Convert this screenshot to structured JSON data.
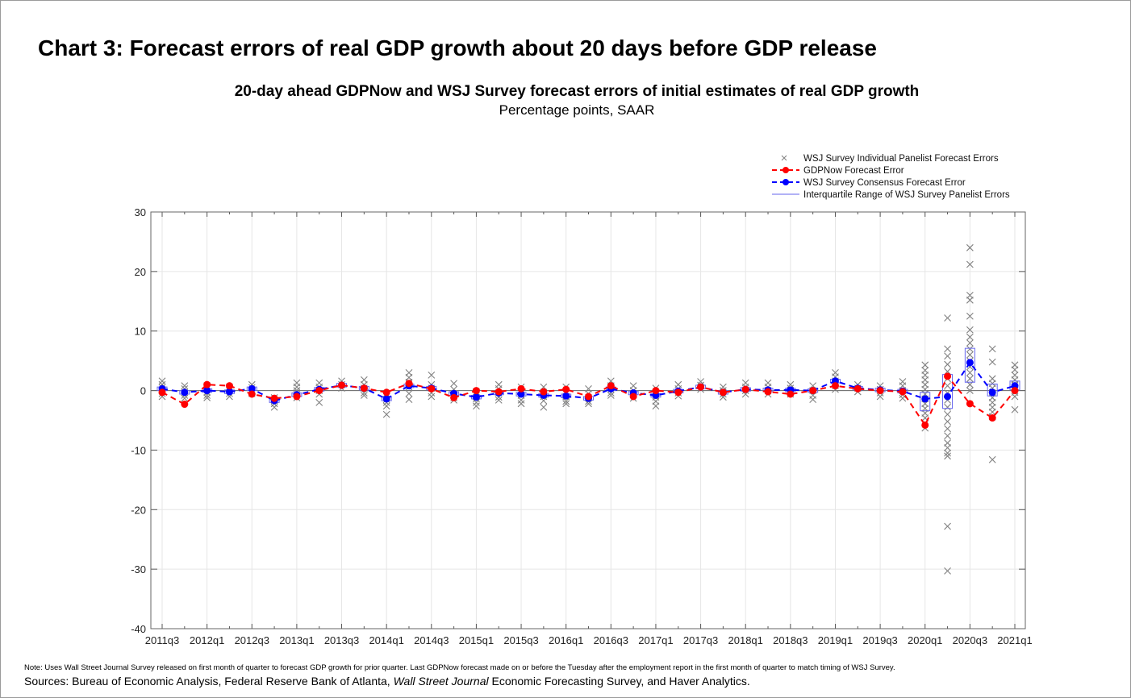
{
  "title": "Chart 3:  Forecast errors of real GDP growth about 20 days before GDP release",
  "note": "Note:  Uses Wall Street Journal Survey released on first month of quarter to forecast GDP growth for prior quarter.  Last GDPNow forecast made on or before the Tuesday after the employment report in the first month of quarter to match timing of WSJ Survey.",
  "sources": {
    "prefix": "Sources: Bureau of Economic Analysis, Federal Reserve Bank of Atlanta, ",
    "italic": "Wall Street Journal",
    "suffix": " Economic Forecasting Survey, and Haver Analytics."
  },
  "chart_data": {
    "type": "line",
    "title": "20-day ahead GDPNow and WSJ Survey forecast errors of initial estimates of real GDP growth",
    "subtitle": "Percentage points, SAAR",
    "ylim": [
      -40,
      30
    ],
    "yticks": [
      -40,
      -30,
      -20,
      -10,
      0,
      10,
      20,
      30
    ],
    "grid": true,
    "legend_placement": "top-right",
    "x": [
      "2011q3",
      "2011q4",
      "2012q1",
      "2012q2",
      "2012q3",
      "2012q4",
      "2013q1",
      "2013q2",
      "2013q3",
      "2013q4",
      "2014q1",
      "2014q2",
      "2014q3",
      "2014q4",
      "2015q1",
      "2015q2",
      "2015q3",
      "2015q4",
      "2016q1",
      "2016q2",
      "2016q3",
      "2016q4",
      "2017q1",
      "2017q2",
      "2017q3",
      "2017q4",
      "2018q1",
      "2018q2",
      "2018q3",
      "2018q4",
      "2019q1",
      "2019q2",
      "2019q3",
      "2019q4",
      "2020q1",
      "2020q2",
      "2020q3",
      "2020q4",
      "2021q1"
    ],
    "xtick_labels": [
      "2011q3",
      "2012q1",
      "2012q3",
      "2013q1",
      "2013q3",
      "2014q1",
      "2014q3",
      "2015q1",
      "2015q3",
      "2016q1",
      "2016q3",
      "2017q1",
      "2017q3",
      "2018q1",
      "2018q3",
      "2019q1",
      "2019q3",
      "2020q1",
      "2020q3",
      "2021q1"
    ],
    "series": [
      {
        "name": "GDPNow Forecast Error",
        "color": "#ff0000",
        "values": [
          -0.3,
          -2.3,
          1.0,
          0.8,
          -0.6,
          -1.3,
          -1.0,
          0.0,
          0.9,
          0.4,
          -0.3,
          1.2,
          0.3,
          -1.2,
          0.0,
          -0.2,
          0.3,
          -0.2,
          0.2,
          -1.0,
          0.8,
          -1.0,
          0.0,
          -0.3,
          0.6,
          -0.3,
          0.2,
          -0.2,
          -0.6,
          0.0,
          0.8,
          0.3,
          0.0,
          -0.2,
          -5.8,
          2.4,
          -2.2,
          -4.6,
          0.0
        ]
      },
      {
        "name": "WSJ Survey Consensus Forecast Error",
        "color": "#0000ff",
        "values": [
          0.3,
          -0.3,
          0.0,
          -0.2,
          0.3,
          -1.7,
          -0.7,
          0.2,
          0.9,
          0.4,
          -1.4,
          0.8,
          0.4,
          -0.5,
          -1.1,
          -0.4,
          -0.6,
          -0.8,
          -0.9,
          -1.3,
          0.3,
          -0.4,
          -0.8,
          -0.1,
          0.6,
          -0.3,
          0.2,
          0.1,
          0.1,
          0.0,
          1.6,
          0.4,
          0.1,
          -0.1,
          -1.4,
          -1.0,
          4.7,
          -0.3,
          0.8
        ]
      }
    ],
    "iqr": {
      "name": "Interquartile Range of WSJ Survey Panelist Errors",
      "color": "#6666ee",
      "low": [
        0.0,
        -0.6,
        -0.3,
        -0.5,
        0.0,
        -2.0,
        -1.0,
        -0.1,
        0.6,
        0.1,
        -1.7,
        0.5,
        0.1,
        -0.8,
        -1.4,
        -0.7,
        -0.9,
        -1.1,
        -1.2,
        -1.6,
        0.0,
        -0.7,
        -1.1,
        -0.4,
        0.3,
        -0.6,
        -0.1,
        -0.2,
        -0.2,
        -0.3,
        1.3,
        0.1,
        -0.2,
        -0.4,
        -3.4,
        -3.0,
        1.4,
        -0.9,
        0.1
      ],
      "high": [
        0.6,
        0.0,
        0.3,
        0.1,
        0.6,
        -1.4,
        -0.4,
        0.5,
        1.2,
        0.7,
        -1.1,
        1.1,
        0.7,
        -0.2,
        -0.8,
        -0.1,
        -0.3,
        -0.5,
        -0.6,
        -1.0,
        0.6,
        -0.1,
        -0.5,
        0.2,
        0.9,
        0.0,
        0.5,
        0.4,
        0.4,
        0.3,
        1.9,
        0.7,
        0.4,
        0.2,
        -0.3,
        2.7,
        7.1,
        1.1,
        1.6
      ]
    },
    "panelist": {
      "name": "WSJ Survey Individual Panelist Forecast Errors",
      "color": "#808080",
      "values": [
        [
          1.6,
          1.0,
          0.5,
          0.0,
          -0.5,
          -1.0
        ],
        [
          0.8,
          0.3,
          -0.3,
          -0.8,
          -1.3
        ],
        [
          0.8,
          0.3,
          -0.3,
          -0.8,
          -1.2
        ],
        [
          0.6,
          0.0,
          -0.5,
          -1.0
        ],
        [
          1.0,
          0.5,
          0.0,
          -0.5
        ],
        [
          -1.2,
          -1.7,
          -2.2,
          -2.8
        ],
        [
          1.3,
          0.6,
          0.0,
          -0.6,
          -1.2
        ],
        [
          1.3,
          0.6,
          0.0,
          -0.6,
          -2.0
        ],
        [
          1.6,
          1.0,
          0.4
        ],
        [
          1.8,
          1.0,
          0.4,
          -0.4,
          -0.8
        ],
        [
          -0.5,
          -1.0,
          -1.5,
          -2.0,
          -2.6,
          -4.0
        ],
        [
          3.0,
          2.2,
          1.4,
          0.6,
          -0.5,
          -1.5
        ],
        [
          2.6,
          1.0,
          0.4,
          -0.4,
          -1.0
        ],
        [
          1.2,
          0.2,
          -0.5,
          -1.2,
          -1.6
        ],
        [
          -0.2,
          -0.8,
          -1.4,
          -2.0,
          -2.6
        ],
        [
          1.0,
          0.3,
          -0.4,
          -1.1,
          -1.6
        ],
        [
          0.6,
          -0.2,
          -0.8,
          -1.6,
          -2.2
        ],
        [
          0.6,
          -0.3,
          -1.0,
          -1.7,
          -2.8
        ],
        [
          0.6,
          -0.3,
          -1.0,
          -1.8,
          -2.2
        ],
        [
          0.3,
          -0.5,
          -1.2,
          -1.8,
          -2.2
        ],
        [
          1.6,
          0.8,
          0.2,
          -0.4,
          -0.8
        ],
        [
          0.8,
          0.0,
          -0.7,
          -1.3
        ],
        [
          0.4,
          -0.4,
          -1.1,
          -1.8,
          -2.6
        ],
        [
          1.0,
          0.3,
          -0.4,
          -0.9
        ],
        [
          1.5,
          0.9,
          0.2
        ],
        [
          0.6,
          0.0,
          -0.6,
          -1.1
        ],
        [
          1.3,
          0.6,
          0.0,
          -0.6
        ],
        [
          1.3,
          0.6,
          0.0,
          -0.6
        ],
        [
          1.0,
          0.4,
          -0.2,
          -0.6
        ],
        [
          0.8,
          0.0,
          -0.8,
          -1.5
        ],
        [
          3.0,
          2.3,
          1.6,
          0.8,
          0.2
        ],
        [
          1.0,
          0.4,
          -0.2
        ],
        [
          0.8,
          0.2,
          -0.4,
          -1.0
        ],
        [
          1.5,
          0.8,
          0.0,
          -0.7,
          -1.3
        ],
        [
          4.3,
          3.4,
          2.6,
          1.8,
          1.0,
          0.2,
          -0.6,
          -1.4,
          -2.2,
          -3.0,
          -3.8,
          -4.6,
          -5.5,
          -6.3
        ],
        [
          12.2,
          7.0,
          5.8,
          4.4,
          3.2,
          2.0,
          0.8,
          -0.4,
          -1.6,
          -2.8,
          -4.0,
          -5.2,
          -6.4,
          -7.6,
          -8.8,
          -9.6,
          -10.5,
          -11.0,
          -22.8,
          -30.3
        ],
        [
          24.0,
          21.2,
          16.0,
          15.2,
          12.5,
          10.2,
          9.0,
          8.0,
          7.0,
          6.0,
          5.0,
          4.0,
          3.0,
          2.0,
          1.0,
          0.0
        ],
        [
          7.0,
          4.8,
          2.0,
          1.2,
          0.4,
          -0.4,
          -1.2,
          -2.0,
          -2.8,
          -3.6,
          -4.4,
          -11.6
        ],
        [
          4.3,
          3.5,
          2.6,
          1.8,
          1.0,
          0.4,
          -0.3,
          -1.0,
          -3.2
        ]
      ]
    }
  }
}
